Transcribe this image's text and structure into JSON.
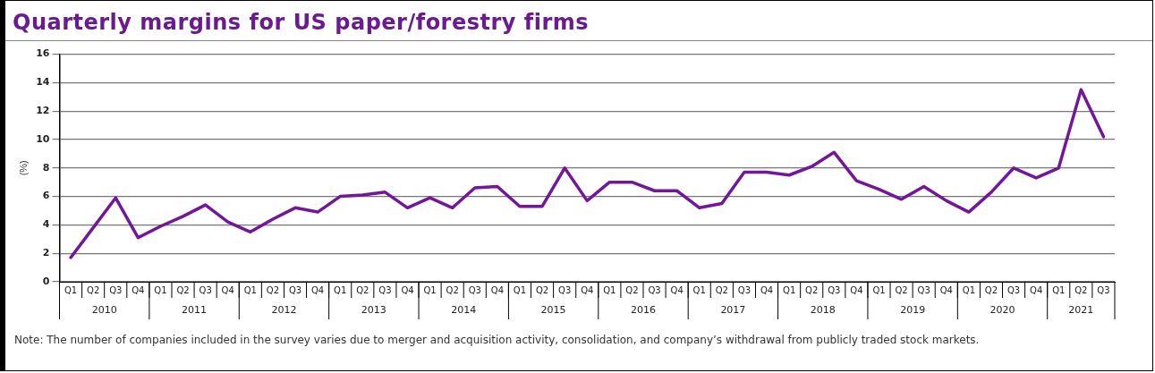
{
  "chart_data": {
    "type": "line",
    "title": "Quarterly margins for US paper/forestry firms",
    "ylabel": "(%)",
    "categories": [
      "Q1",
      "Q2",
      "Q3",
      "Q4",
      "Q1",
      "Q2",
      "Q3",
      "Q4",
      "Q1",
      "Q2",
      "Q3",
      "Q4",
      "Q1",
      "Q2",
      "Q3",
      "Q4",
      "Q1",
      "Q2",
      "Q3",
      "Q4",
      "Q1",
      "Q2",
      "Q3",
      "Q4",
      "Q1",
      "Q2",
      "Q3",
      "Q4",
      "Q1",
      "Q2",
      "Q3",
      "Q4",
      "Q1",
      "Q2",
      "Q3",
      "Q4",
      "Q1",
      "Q2",
      "Q3",
      "Q4",
      "Q1",
      "Q2",
      "Q3",
      "Q4",
      "Q1",
      "Q2",
      "Q3"
    ],
    "series": [
      {
        "color": "#72169a",
        "values": [
          1.7,
          3.8,
          5.9,
          3.1,
          3.9,
          4.6,
          5.4,
          4.2,
          3.5,
          4.4,
          5.2,
          4.9,
          6.0,
          6.1,
          6.3,
          5.2,
          5.9,
          5.2,
          6.6,
          6.7,
          5.3,
          5.3,
          8.0,
          5.7,
          7.0,
          7.0,
          6.4,
          6.4,
          5.2,
          5.5,
          7.7,
          7.7,
          7.5,
          8.1,
          9.1,
          7.1,
          6.5,
          5.8,
          6.7,
          5.7,
          4.9,
          6.3,
          8.0,
          7.3,
          8.0,
          13.5,
          10.2
        ]
      }
    ],
    "ylim": [
      0,
      16
    ],
    "yticks": [
      0,
      2,
      4,
      6,
      8,
      10,
      12,
      14,
      16
    ],
    "grid": "y",
    "legend": false,
    "marker": "none",
    "line_style": "solid",
    "annotations": [
      "2010",
      "2011",
      "2012",
      "2013",
      "2014",
      "2015",
      "2016",
      "2017",
      "2018",
      "2019",
      "2020",
      "2021",
      "Note: The number of companies included in the survey varies due to merger and acquisition activity, consolidation, and company’s withdrawal from publicly traded stock markets."
    ]
  }
}
